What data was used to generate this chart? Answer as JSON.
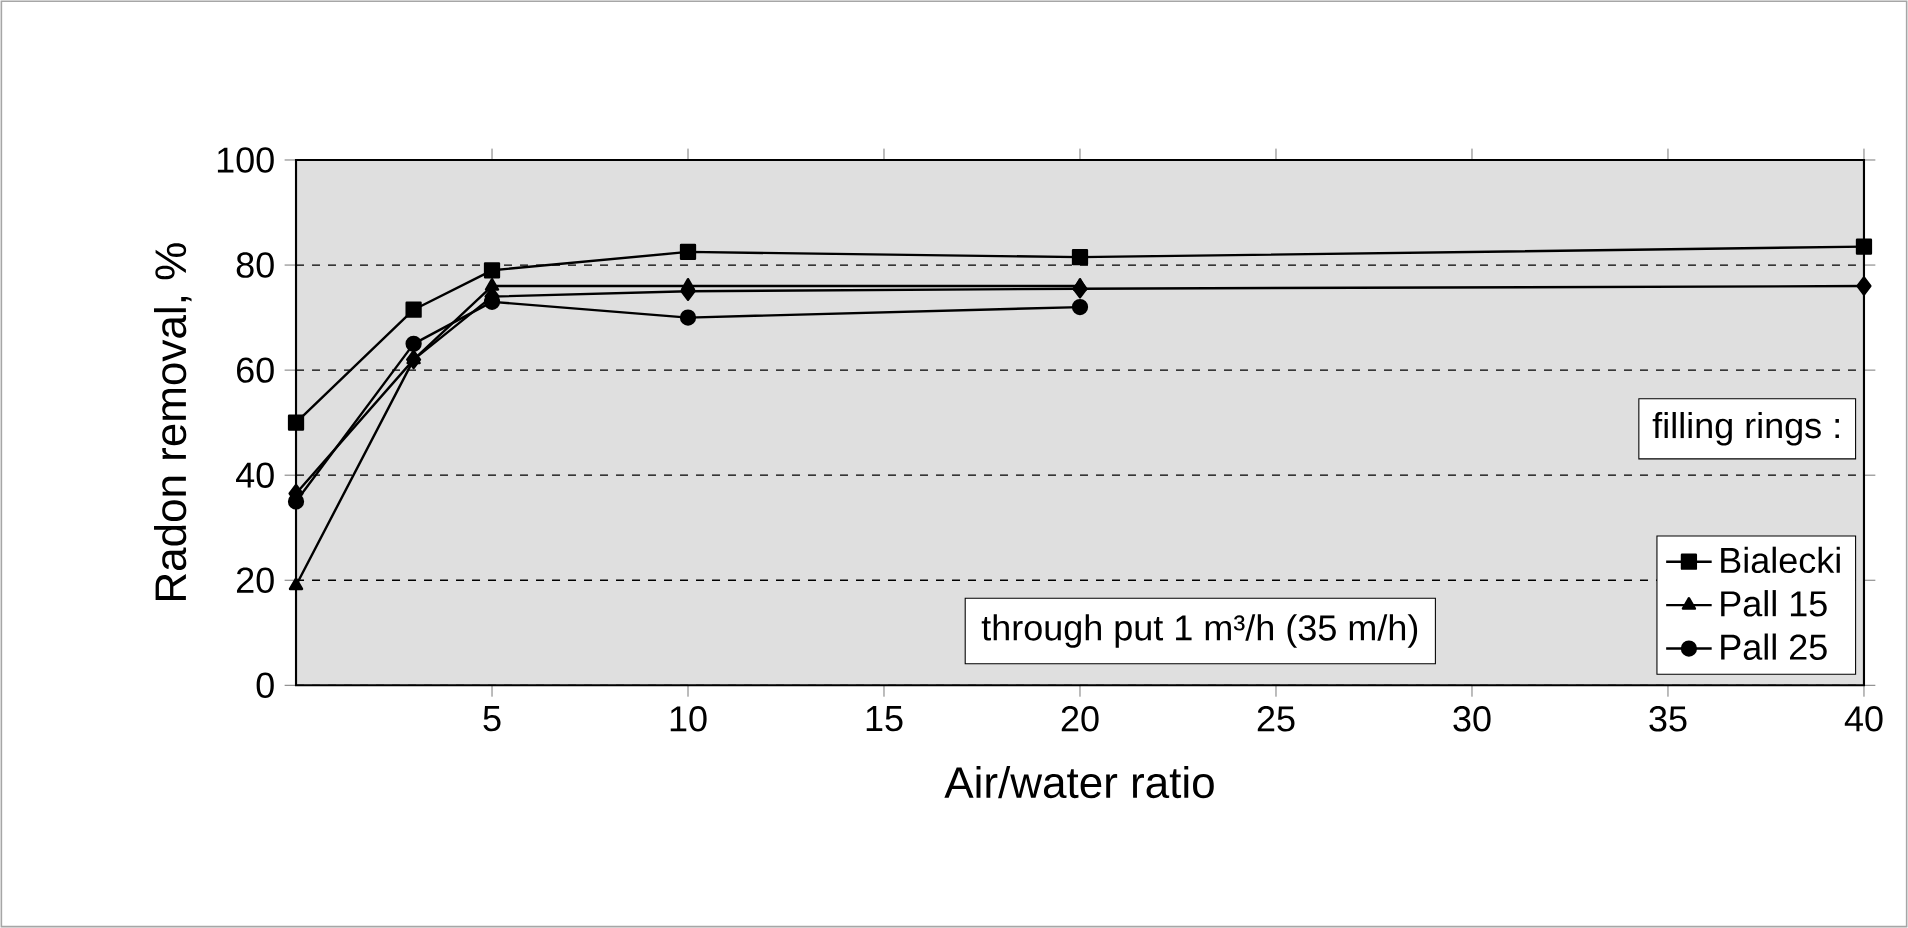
{
  "chart_data": {
    "type": "line",
    "xlabel": "Air/water ratio",
    "ylabel": "Radon removal, %",
    "legend_title": "filling rings :",
    "annotations": [
      "through put 1 m³/h (35 m/h)"
    ],
    "x": [
      0,
      3,
      5,
      10,
      20,
      40
    ],
    "series": [
      {
        "color": "#000000",
        "marker": "diamond",
        "values": [
          36.5,
          62,
          74,
          75,
          75.5,
          76
        ]
      },
      {
        "name": "Bialecki",
        "color": "#000000",
        "marker": "square",
        "values": [
          50,
          71.5,
          79,
          82.5,
          81.5,
          83.5
        ]
      },
      {
        "name": "Pall 15",
        "color": "#000000",
        "marker": "triangle",
        "values": [
          19,
          62,
          76,
          76,
          76,
          null
        ]
      },
      {
        "name": "Pall 25",
        "color": "#000000",
        "marker": "circle",
        "values": [
          35,
          65,
          73,
          70,
          72,
          null
        ]
      }
    ],
    "xlim": [
      0,
      40
    ],
    "xticks": [
      5,
      10,
      15,
      20,
      25,
      30,
      35,
      40
    ],
    "ylim": [
      0,
      100
    ],
    "yticks": [
      0,
      20,
      40,
      60,
      80,
      100
    ],
    "grid": "y",
    "legend": "bottom right",
    "line_style": "solid"
  }
}
